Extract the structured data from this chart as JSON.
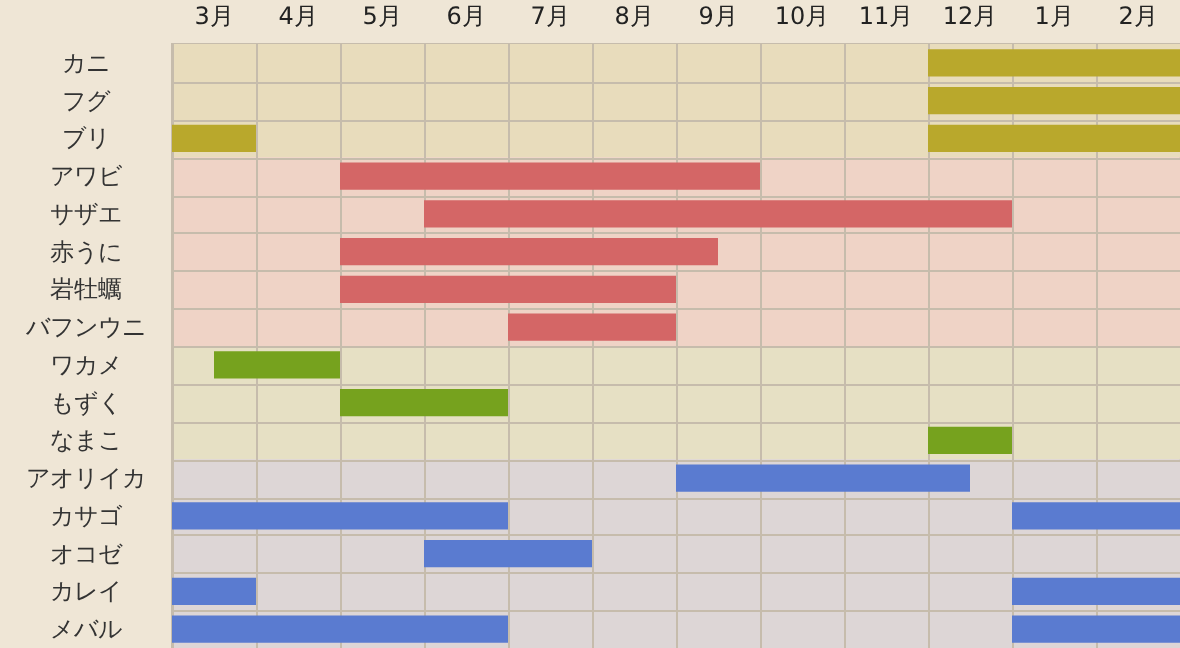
{
  "chart_data": {
    "type": "bar",
    "orientation": "horizontal",
    "categories": [
      "カニ",
      "フグ",
      "ブリ",
      "アワビ",
      "サザエ",
      "赤うに",
      "岩牡蠣",
      "バフンウニ",
      "ワカメ",
      "もずく",
      "なまこ",
      "アオリイカ",
      "カサゴ",
      "オコゼ",
      "カレイ",
      "メバル"
    ],
    "series": [
      {
        "base": [
          11.5,
          11.5,
          2.5,
          4.5,
          5.5,
          4.5,
          4.5,
          6.5,
          3,
          4.5,
          11.5,
          8.5,
          2.5,
          5.5,
          2.5,
          2.5
        ],
        "values": [
          3,
          3,
          1,
          5,
          7,
          4.5,
          4,
          2,
          1.5,
          2,
          1,
          3.5,
          4,
          2,
          1,
          4
        ],
        "colors": [
          "#b9a82c",
          "#b9a82c",
          "#b9a82c",
          "#d46666",
          "#d46666",
          "#d46666",
          "#d46666",
          "#d46666",
          "#76a21e",
          "#76a21e",
          "#76a21e",
          "#5a7bd0",
          "#5a7bd0",
          "#5a7bd0",
          "#5a7bd0",
          "#5a7bd0"
        ]
      },
      {
        "base": [
          null,
          null,
          11.5,
          null,
          null,
          null,
          null,
          null,
          null,
          null,
          null,
          null,
          12.5,
          null,
          12.5,
          12.5
        ],
        "values": [
          null,
          null,
          3,
          null,
          null,
          null,
          null,
          null,
          null,
          null,
          null,
          null,
          2,
          null,
          2,
          2
        ],
        "colors": [
          null,
          null,
          "#b9a82c",
          null,
          null,
          null,
          null,
          null,
          null,
          null,
          null,
          null,
          "#5a7bd0",
          null,
          "#5a7bd0",
          "#5a7bd0"
        ]
      }
    ],
    "xlim": [
      2.5,
      14.5
    ],
    "xticks": [
      {
        "value": 2.5,
        "label": null
      },
      {
        "value": 3,
        "label": "3月"
      },
      {
        "value": 3.5,
        "label": null
      },
      {
        "value": 4,
        "label": "4月"
      },
      {
        "value": 4.5,
        "label": null
      },
      {
        "value": 5,
        "label": "5月"
      },
      {
        "value": 5.5,
        "label": null
      },
      {
        "value": 6,
        "label": "6月"
      },
      {
        "value": 6.5,
        "label": null
      },
      {
        "value": 7,
        "label": "7月"
      },
      {
        "value": 7.5,
        "label": null
      },
      {
        "value": 8,
        "label": "8月"
      },
      {
        "value": 8.5,
        "label": null
      },
      {
        "value": 9,
        "label": "9月"
      },
      {
        "value": 9.5,
        "label": null
      },
      {
        "value": 10,
        "label": "10月"
      },
      {
        "value": 10.5,
        "label": null
      },
      {
        "value": 11,
        "label": "11月"
      },
      {
        "value": 11.5,
        "label": null
      },
      {
        "value": 12,
        "label": "12月"
      },
      {
        "value": 12.5,
        "label": null
      },
      {
        "value": 13.5,
        "label": null
      },
      {
        "value": 14.5,
        "label": null
      }
    ],
    "x2lim": [
      -9.5,
      2.5
    ],
    "x2ticks": [
      {
        "value": 1,
        "label": "1月"
      },
      {
        "value": 2,
        "label": "2月"
      }
    ],
    "bands": [
      {
        "axis": "y",
        "from": "カニ",
        "to": "ブリ",
        "color": "#e8dcbc"
      },
      {
        "axis": "y",
        "from": "アワビ",
        "to": "バフンウニ",
        "color": "#efd3c6"
      },
      {
        "axis": "y",
        "from": "ワカメ",
        "to": "なまこ",
        "color": "#e6e0c4"
      },
      {
        "axis": "y",
        "from": "アオリイカ",
        "to": "メバル",
        "color": "#ddd6d6"
      }
    ],
    "grid": true
  }
}
